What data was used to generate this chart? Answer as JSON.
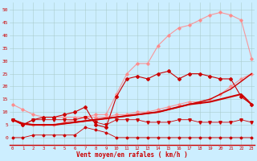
{
  "background_color": "#cceeff",
  "grid_color": "#aacccc",
  "xlabel": "Vent moyen/en rafales ( km/h )",
  "x_values": [
    0,
    1,
    2,
    3,
    4,
    5,
    6,
    7,
    8,
    9,
    10,
    11,
    12,
    13,
    14,
    15,
    16,
    17,
    18,
    19,
    20,
    21,
    22,
    23
  ],
  "yticks": [
    0,
    5,
    10,
    15,
    20,
    25,
    30,
    35,
    40,
    45,
    50
  ],
  "ylim": [
    -3,
    53
  ],
  "xlim": [
    -0.3,
    23.3
  ],
  "line_straight1_y": [
    7,
    5.5,
    5,
    5,
    5,
    5.5,
    6,
    6.5,
    7,
    7.5,
    8,
    8.5,
    9,
    9.5,
    10,
    11,
    12,
    13,
    13.5,
    14,
    15,
    16,
    17,
    13
  ],
  "line_straight2_y": [
    7,
    5.5,
    5,
    5,
    5,
    5.5,
    6,
    6.5,
    7,
    7.5,
    8,
    8.5,
    9,
    9.5,
    10,
    11,
    12,
    13,
    14,
    15,
    17,
    19,
    22,
    25
  ],
  "line_straight1_color": "#cc0000",
  "line_straight2_color": "#cc0000",
  "line_pink_upper_y": [
    7,
    5,
    5,
    5,
    5,
    6,
    7,
    8,
    9,
    9,
    17,
    25,
    29,
    29,
    36,
    40,
    43,
    44,
    46,
    48,
    49,
    48,
    46,
    31
  ],
  "line_pink_lower_y": [
    13,
    11,
    9,
    8,
    8,
    8,
    8,
    8,
    8,
    8,
    9,
    9,
    10,
    10,
    11,
    12,
    13,
    14,
    14,
    15,
    17,
    20,
    23,
    25
  ],
  "line_pink_color": "#ff8888",
  "line_dark_main_y": [
    7,
    5,
    7,
    8,
    8,
    9,
    10,
    12,
    5,
    4,
    16,
    23,
    24,
    23,
    25,
    26,
    23,
    25,
    25,
    24,
    23,
    23,
    16,
    13
  ],
  "line_dark_main_color": "#cc0000",
  "line_flat_low_y": [
    0,
    0,
    1,
    1,
    1,
    1,
    1,
    4,
    3,
    2,
    0,
    0,
    0,
    0,
    0,
    0,
    0,
    0,
    0,
    0,
    0,
    0,
    0,
    0
  ],
  "line_flat_low_color": "#cc0000",
  "line_horiz_y": [
    7,
    5,
    7,
    7,
    7,
    7,
    7,
    8,
    6,
    5,
    7,
    7,
    7,
    6,
    6,
    6,
    7,
    7,
    6,
    6,
    6,
    6,
    7,
    6
  ],
  "line_horiz_color": "#cc0000"
}
